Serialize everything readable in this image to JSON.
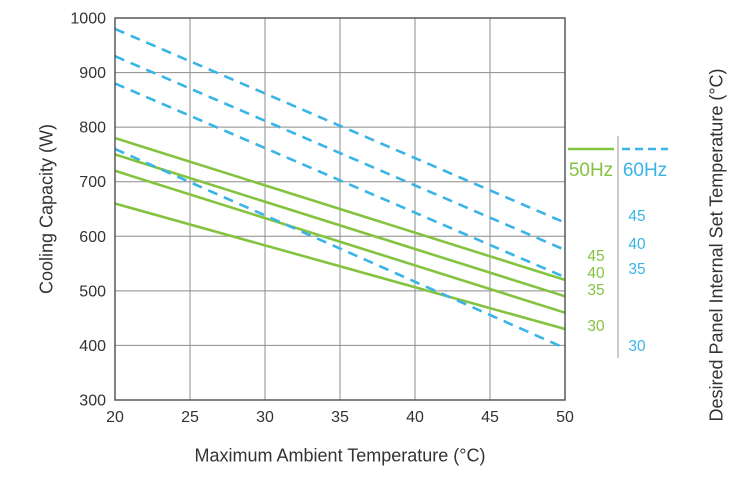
{
  "chart_data": {
    "type": "line",
    "title": "",
    "xlabel": "Maximum Ambient Temperature (°C)",
    "ylabel": "Cooling Capacity (W)",
    "ylabel_right": "Desired Panel Internal Set Temperature (°C)",
    "xlim": [
      20,
      50
    ],
    "ylim": [
      300,
      1000
    ],
    "xticks": [
      "20",
      "25",
      "30",
      "35",
      "40",
      "45",
      "50"
    ],
    "yticks": [
      "300",
      "400",
      "500",
      "600",
      "700",
      "800",
      "900",
      "1000"
    ],
    "grid": true,
    "legend_position": "right",
    "colors": {
      "hz50": "#84c340",
      "hz60": "#39b4e6",
      "grid": "#8c8c8c",
      "border": "#4d4d4d",
      "text": "#333333",
      "divider": "#9a9a9a"
    },
    "series": [
      {
        "group": "50Hz",
        "set_temperature": 45,
        "style": "solid",
        "x": [
          20,
          50
        ],
        "y": [
          780,
          520
        ]
      },
      {
        "group": "50Hz",
        "set_temperature": 40,
        "style": "solid",
        "x": [
          20,
          50
        ],
        "y": [
          750,
          490
        ]
      },
      {
        "group": "50Hz",
        "set_temperature": 35,
        "style": "solid",
        "x": [
          20,
          50
        ],
        "y": [
          720,
          460
        ]
      },
      {
        "group": "50Hz",
        "set_temperature": 30,
        "style": "solid",
        "x": [
          20,
          50
        ],
        "y": [
          660,
          430
        ]
      },
      {
        "group": "60Hz",
        "set_temperature": 45,
        "style": "dashed",
        "x": [
          20,
          50
        ],
        "y": [
          980,
          625
        ]
      },
      {
        "group": "60Hz",
        "set_temperature": 40,
        "style": "dashed",
        "x": [
          20,
          50
        ],
        "y": [
          930,
          575
        ]
      },
      {
        "group": "60Hz",
        "set_temperature": 35,
        "style": "dashed",
        "x": [
          20,
          50
        ],
        "y": [
          880,
          525
        ]
      },
      {
        "group": "60Hz",
        "set_temperature": 30,
        "style": "dashed",
        "x": [
          20,
          50
        ],
        "y": [
          760,
          395
        ]
      }
    ],
    "legend": {
      "groups": [
        {
          "label": "50Hz",
          "style": "solid",
          "set_temps": [
            "45",
            "40",
            "35",
            "30"
          ]
        },
        {
          "label": "60Hz",
          "style": "dashed",
          "set_temps": [
            "45",
            "40",
            "35",
            "30"
          ]
        }
      ]
    }
  }
}
